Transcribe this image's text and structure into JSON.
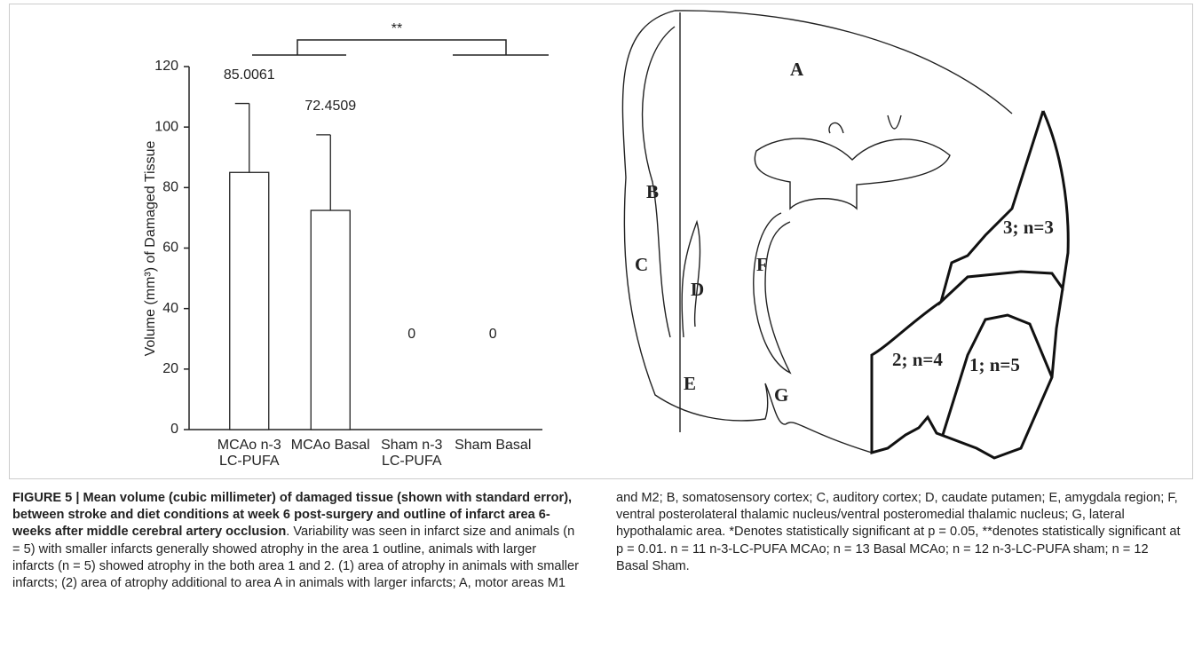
{
  "chart_data": {
    "type": "bar",
    "y_label": "Volume (mm³) of Damaged Tissue",
    "categories": [
      [
        "MCAo n-3",
        "LC-PUFA"
      ],
      [
        "MCAo Basal"
      ],
      [
        "Sham n-3",
        "LC-PUFA"
      ],
      [
        "Sham Basal"
      ]
    ],
    "values": [
      85.0061,
      72.4509,
      0,
      0
    ],
    "errors": [
      22.8,
      25.0,
      null,
      null
    ],
    "color": "#ffffff",
    "ylim": [
      0,
      120
    ],
    "yticks": [
      0,
      20,
      40,
      60,
      80,
      100,
      120
    ],
    "annotations": [
      "**"
    ]
  },
  "diagram": {
    "labels": [
      "A",
      "B",
      "C",
      "D",
      "E",
      "F",
      "G",
      "3; n=3",
      "2; n=4",
      "1; n=5"
    ]
  },
  "caption": {
    "title": "FIGURE 5 | Mean volume (cubic millimeter) of damaged tissue (shown with standard error), between stroke and diet conditions at week 6 post-surgery and outline of infarct area 6-weeks after middle cerebral artery occlusion",
    "body": ". Variability was seen in infarct size and animals (n = 5) with smaller infarcts generally showed atrophy in the area 1 outline, animals with larger infarcts (n = 5) showed atrophy in the both area 1 and 2. (1) area of atrophy in animals with smaller infarcts; (2) area of atrophy additional to area A in animals with larger infarcts; A, motor areas M1 and M2; B, somatosensory cortex; C, auditory cortex; D, caudate putamen; E, amygdala region; F, ventral posterolateral thalamic nucleus/ventral posteromedial thalamic nucleus; G, lateral hypothalamic area. *Denotes statistically significant at p = 0.05, **denotes statistically significant at p = 0.01. n = 11 n-3-LC-PUFA MCAo; n = 13 Basal MCAo; n = 12 n-3-LC-PUFA sham; n = 12 Basal Sham."
  }
}
